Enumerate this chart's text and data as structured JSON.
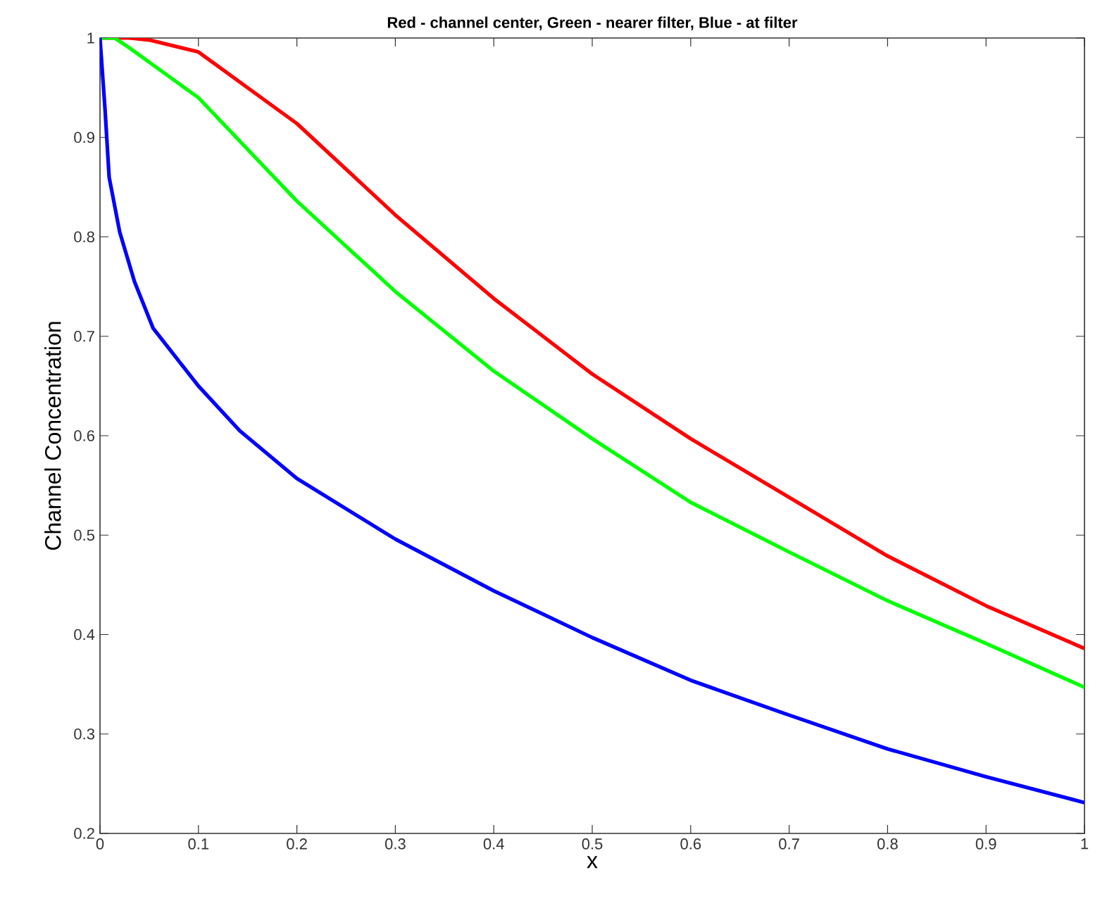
{
  "chart_data": {
    "type": "line",
    "title": "Red - channel center, Green - nearer filter, Blue - at filter",
    "xlabel": "x",
    "ylabel": "Channel Concentration",
    "xlim": [
      0,
      1
    ],
    "ylim": [
      0.2,
      1
    ],
    "xticks": [
      0,
      0.1,
      0.2,
      0.3,
      0.4,
      0.5,
      0.6,
      0.7,
      0.8,
      0.9,
      1
    ],
    "yticks": [
      0.2,
      0.3,
      0.4,
      0.5,
      0.6,
      0.7,
      0.8,
      0.9,
      1
    ],
    "grid": false,
    "marker": "none",
    "line_style": "solid",
    "series": [
      {
        "color": "#ff0000",
        "x": [
          0,
          0.03,
          0.05,
          0.1,
          0.2,
          0.3,
          0.4,
          0.5,
          0.6,
          0.7,
          0.8,
          0.9,
          1
        ],
        "values": [
          1,
          1,
          0.998,
          0.986,
          0.914,
          0.822,
          0.738,
          0.662,
          0.597,
          0.538,
          0.479,
          0.429,
          0.386
        ]
      },
      {
        "color": "#00ff00",
        "x": [
          0,
          0.015,
          0.03,
          0.1,
          0.2,
          0.3,
          0.4,
          0.5,
          0.6,
          0.7,
          0.8,
          0.9,
          1
        ],
        "values": [
          1,
          1,
          0.99,
          0.94,
          0.836,
          0.745,
          0.665,
          0.597,
          0.533,
          0.483,
          0.434,
          0.391,
          0.347
        ]
      },
      {
        "color": "#0000ff",
        "x": [
          0,
          0.005,
          0.0093,
          0.02,
          0.035,
          0.054,
          0.1,
          0.142,
          0.2,
          0.3,
          0.4,
          0.5,
          0.6,
          0.7,
          0.8,
          0.9,
          1
        ],
        "values": [
          1,
          0.93,
          0.86,
          0.805,
          0.755,
          0.708,
          0.65,
          0.605,
          0.557,
          0.496,
          0.444,
          0.397,
          0.354,
          0.319,
          0.285,
          0.257,
          0.231
        ]
      }
    ]
  }
}
